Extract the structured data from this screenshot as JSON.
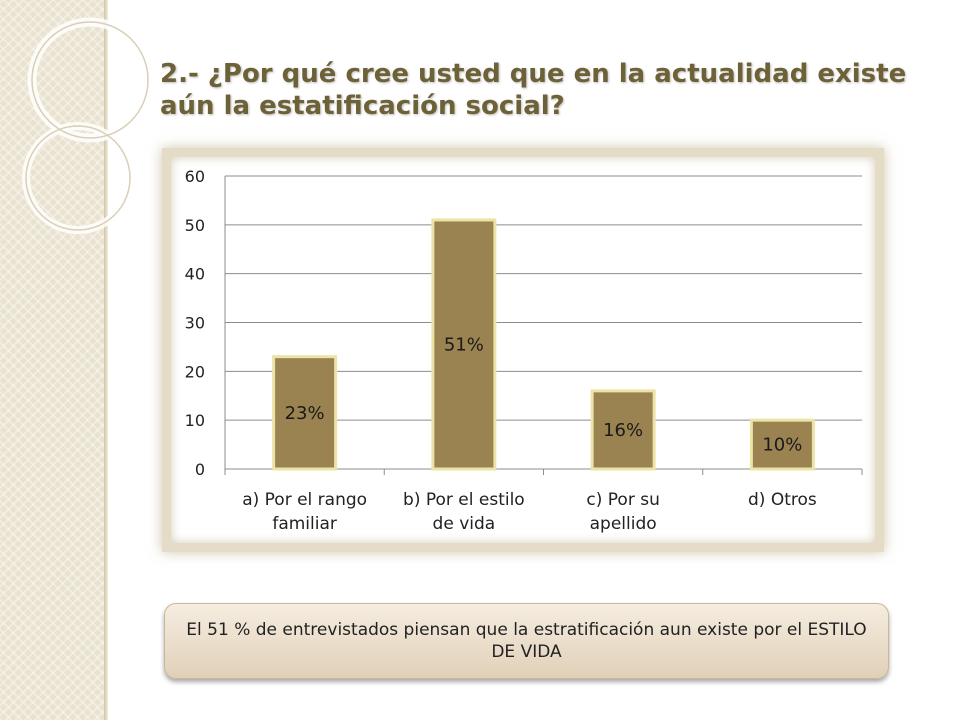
{
  "slide": {
    "title": "2.- ¿Por qué cree usted que en la actualidad existe aún la estatificación social?",
    "caption": "El 51 % de entrevistados piensan que la estratificación aun existe por el ESTILO DE VIDA"
  },
  "colors": {
    "title": "#6d6237",
    "bar_fill": "#9a8351",
    "bar_border": "#ece3a7",
    "band": "#e9e2cf",
    "grid": "#8c8c8c"
  },
  "chart_data": {
    "type": "bar",
    "categories": [
      [
        "a) Por el rango",
        "familiar"
      ],
      [
        "b) Por el estilo",
        "de vida"
      ],
      [
        "c) Por su",
        "apellido"
      ],
      [
        "d) Otros"
      ]
    ],
    "values": [
      23,
      51,
      16,
      10
    ],
    "data_labels": [
      "23%",
      "51%",
      "16%",
      "10%"
    ],
    "ylim": [
      0,
      60
    ],
    "yticks": [
      0,
      10,
      20,
      30,
      40,
      50,
      60
    ],
    "grid": true,
    "legend": "none"
  }
}
